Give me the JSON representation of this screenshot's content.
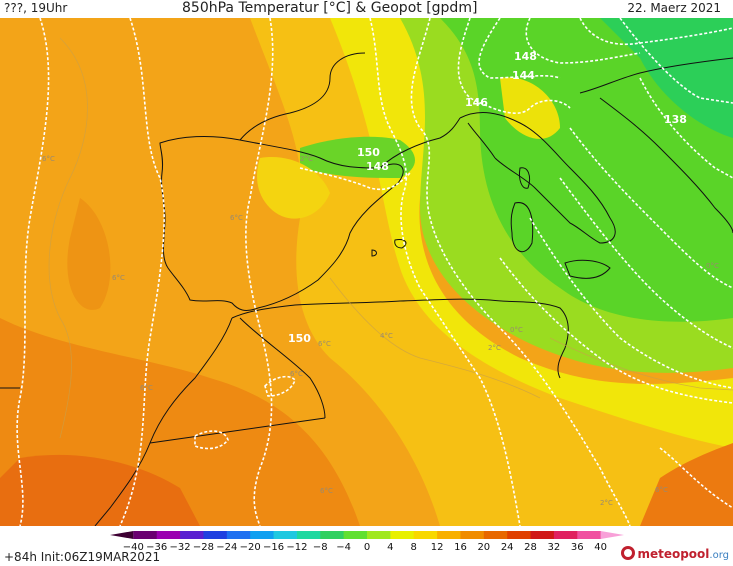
{
  "header": {
    "left": "???, 19Uhr",
    "title": "850hPa Temperatur [°C] & Geopot [gpdm]",
    "date": "22. Maerz 2021"
  },
  "footer": {
    "run_info": "+84h  Init:06Z19MAR2021",
    "logo_text": "meteopool",
    "logo_suffix": ".org"
  },
  "legend": {
    "ticks": [
      "-40",
      "-36",
      "-32",
      "-28",
      "-24",
      "-20",
      "-16",
      "-12",
      "-8",
      "-4",
      "0",
      "4",
      "8",
      "12",
      "16",
      "20",
      "24",
      "28",
      "32",
      "36",
      "40"
    ],
    "colors": [
      "#3d0033",
      "#6a0070",
      "#9a00b0",
      "#5a20d0",
      "#2040e0",
      "#2070f0",
      "#10a0f0",
      "#20c8e0",
      "#20d8a0",
      "#30d060",
      "#60e030",
      "#a0e820",
      "#e8f000",
      "#f8d800",
      "#f8b000",
      "#f08c00",
      "#e86800",
      "#e04000",
      "#d01818",
      "#e02060",
      "#f050a0",
      "#f8a0d8"
    ]
  },
  "map_labels": {
    "geopot": [
      "148",
      "144",
      "146",
      "150",
      "148",
      "138",
      "150"
    ],
    "temp": [
      "6°C",
      "2°C",
      "6°C",
      "6°C",
      "6°C",
      "4°C",
      "2°C",
      "0°C",
      "2°C",
      "6°C",
      "0°C",
      "6°C",
      "6°C",
      "6°C"
    ]
  }
}
